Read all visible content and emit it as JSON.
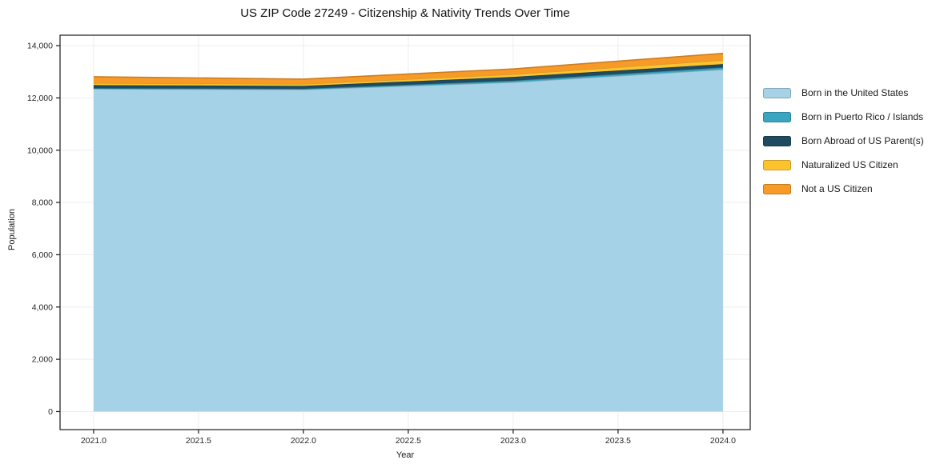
{
  "chart_data": {
    "type": "area",
    "stacked": true,
    "title": "US ZIP Code 27249 - Citizenship & Nativity Trends Over Time",
    "xlabel": "Year",
    "ylabel": "Population",
    "x": [
      2021,
      2022,
      2023,
      2024
    ],
    "series": [
      {
        "name": "Born in the United States",
        "color": "#a6d2e7",
        "values": [
          12350,
          12320,
          12600,
          13090
        ]
      },
      {
        "name": "Born in Puerto Rico / Islands",
        "color": "#3aa5bf",
        "values": [
          20,
          30,
          60,
          75
        ]
      },
      {
        "name": "Born Abroad of US Parent(s)",
        "color": "#1f4a5f",
        "values": [
          120,
          110,
          145,
          130
        ]
      },
      {
        "name": "Naturalized US Citizen",
        "color": "#fdc32f",
        "values": [
          80,
          75,
          100,
          155
        ]
      },
      {
        "name": "Not a US Citizen",
        "color": "#f79a28",
        "values": [
          240,
          185,
          205,
          255
        ]
      }
    ],
    "totals": [
      12810,
      12720,
      13110,
      13705
    ],
    "xlim": [
      2020.84,
      2024.13
    ],
    "ylim": [
      -690,
      14400
    ],
    "xticks": [
      2021.0,
      2021.5,
      2022.0,
      2022.5,
      2023.0,
      2023.5,
      2024.0
    ],
    "xtick_labels": [
      "2021.0",
      "2021.5",
      "2022.0",
      "2022.5",
      "2023.0",
      "2023.5",
      "2024.0"
    ],
    "yticks": [
      0,
      2000,
      4000,
      6000,
      8000,
      10000,
      12000,
      14000
    ],
    "ytick_labels": [
      "0",
      "2,000",
      "4,000",
      "6,000",
      "8,000",
      "10,000",
      "12,000",
      "14,000"
    ],
    "grid": true,
    "grid_color": "#ededed",
    "spine_color": "#1a1a1a",
    "legend_position": "right"
  }
}
